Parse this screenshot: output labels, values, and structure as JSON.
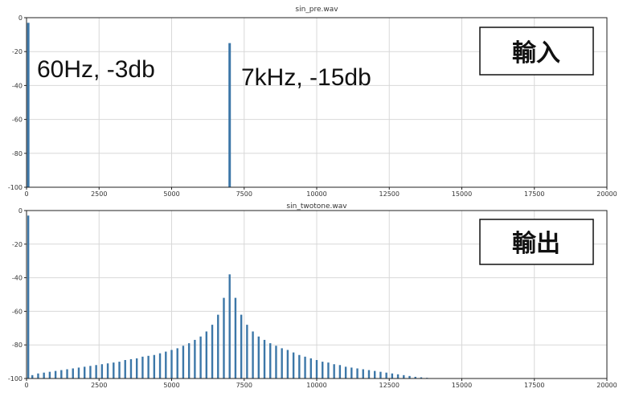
{
  "chart_data": [
    {
      "type": "bar",
      "title": "sin_pre.wav",
      "xlim": [
        0,
        20000
      ],
      "ylim": [
        -100,
        0
      ],
      "xticks": [
        0,
        2500,
        5000,
        7500,
        10000,
        12500,
        15000,
        17500,
        20000
      ],
      "yticks": [
        0,
        -20,
        -40,
        -60,
        -80,
        -100
      ],
      "grid": true,
      "bar_color": "#3c77a8",
      "x": [
        60,
        7000
      ],
      "values": [
        -3,
        -15
      ],
      "annotations": [
        "60Hz, -3db",
        "7kHz, -15db"
      ],
      "badge": "輸入"
    },
    {
      "type": "bar",
      "title": "sin_twotone.wav",
      "xlim": [
        0,
        20000
      ],
      "ylim": [
        -100,
        0
      ],
      "xticks": [
        0,
        2500,
        5000,
        7500,
        10000,
        12500,
        15000,
        17500,
        20000
      ],
      "yticks": [
        0,
        -20,
        -40,
        -60,
        -80,
        -100
      ],
      "grid": true,
      "bar_color": "#3c77a8",
      "x": [
        60,
        200,
        400,
        600,
        800,
        1000,
        1200,
        1400,
        1600,
        1800,
        2000,
        2200,
        2400,
        2600,
        2800,
        3000,
        3200,
        3400,
        3600,
        3800,
        4000,
        4200,
        4400,
        4600,
        4800,
        5000,
        5200,
        5400,
        5600,
        5800,
        6000,
        6200,
        6400,
        6600,
        6800,
        7000,
        7200,
        7400,
        7600,
        7800,
        8000,
        8200,
        8400,
        8600,
        8800,
        9000,
        9200,
        9400,
        9600,
        9800,
        10000,
        10200,
        10400,
        10600,
        10800,
        11000,
        11200,
        11400,
        11600,
        11800,
        12000,
        12200,
        12400,
        12600,
        12800,
        13000,
        13200,
        13400,
        13600,
        13800
      ],
      "values": [
        -3,
        -98,
        -97,
        -96.5,
        -96,
        -95.5,
        -95,
        -94.5,
        -94,
        -93.5,
        -93,
        -92.5,
        -92,
        -91.5,
        -91,
        -90.5,
        -90,
        -89,
        -88.5,
        -88,
        -87,
        -86.5,
        -86,
        -85,
        -84,
        -83,
        -82,
        -80.5,
        -79,
        -77,
        -75,
        -72,
        -68,
        -62,
        -52,
        -38,
        -52,
        -62,
        -68,
        -72,
        -75,
        -77,
        -79,
        -80.5,
        -82,
        -83,
        -84.5,
        -86,
        -87,
        -88,
        -89,
        -90,
        -90.5,
        -91.5,
        -92,
        -93,
        -93.5,
        -94,
        -94.5,
        -95,
        -95.5,
        -96,
        -96.5,
        -97,
        -97.5,
        -98,
        -98.5,
        -99,
        -99.3,
        -99.6
      ],
      "badge": "輸出"
    }
  ]
}
